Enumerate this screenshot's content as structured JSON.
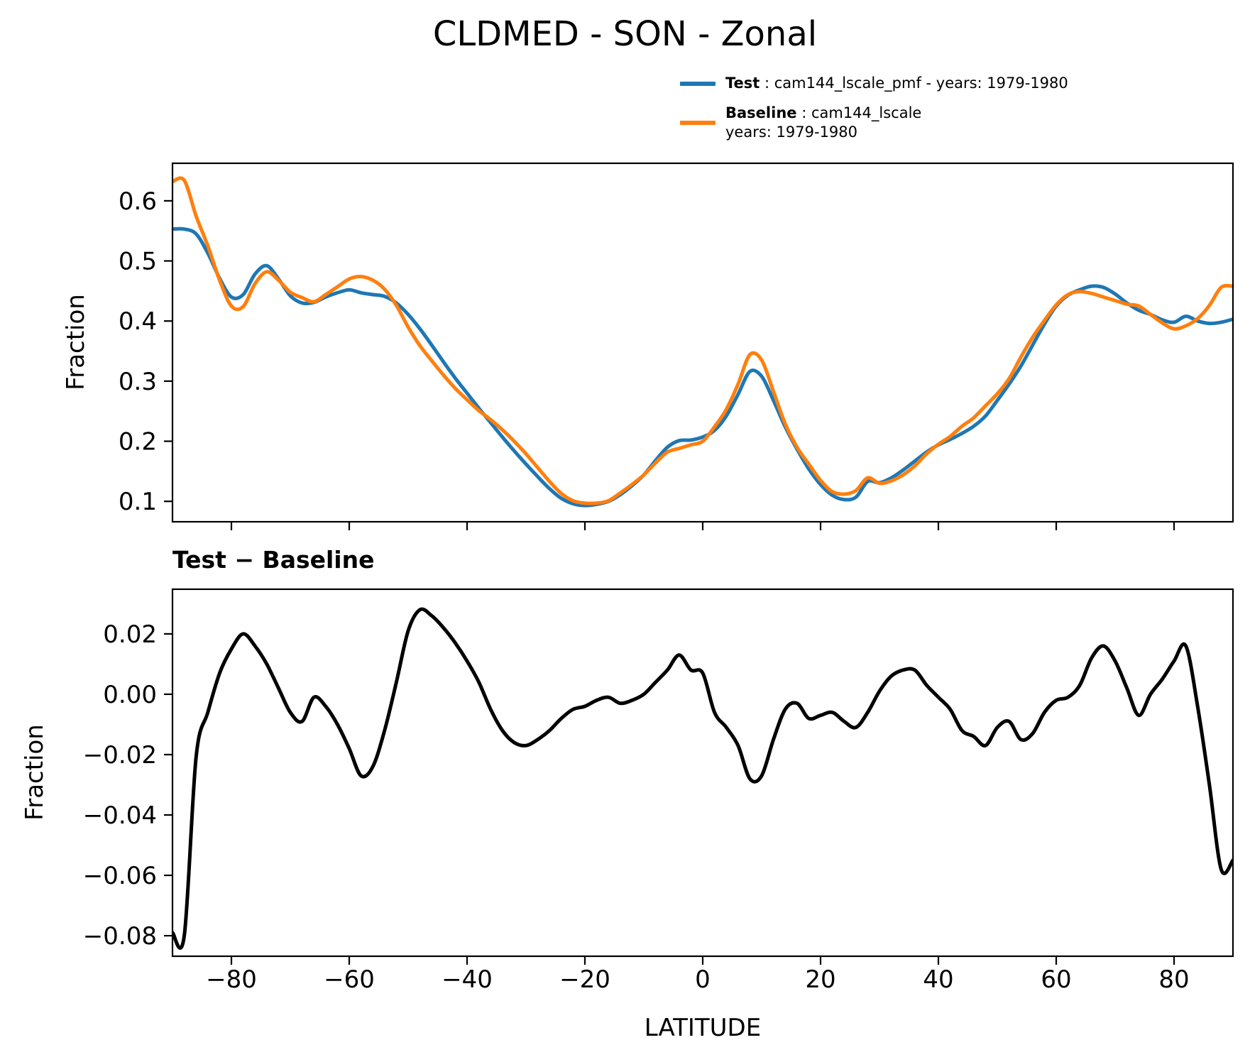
{
  "title": "CLDMED - SON - Zonal",
  "legend": {
    "test_label": "Test",
    "test_rest": " : cam144_lscale_pmf - years: 1979-1980",
    "baseline_label": "Baseline",
    "baseline_rest": " : cam144_lscale",
    "baseline_years": "years: 1979-1980"
  },
  "colors": {
    "test": "#1f77b4",
    "baseline": "#ff7f0e",
    "diff": "#000000",
    "axis": "#000000"
  },
  "chart_data": [
    {
      "type": "line",
      "name": "zonal-mean-panel",
      "title": "",
      "xlabel": "",
      "ylabel": "Fraction",
      "grid": false,
      "legend_position": "above-right",
      "xlim": [
        -90,
        90
      ],
      "ylim": [
        0.066,
        0.6625
      ],
      "xticks": [
        -80,
        -60,
        -40,
        -20,
        0,
        20,
        40,
        60,
        80
      ],
      "xtick_labels": null,
      "yticks": [
        0.1,
        0.2,
        0.3,
        0.4,
        0.5,
        0.6
      ],
      "ytick_labels": [
        "0.1",
        "0.2",
        "0.3",
        "0.4",
        "0.5",
        "0.6"
      ],
      "x": [
        -90,
        -88,
        -86,
        -84,
        -82,
        -80,
        -78,
        -76,
        -74,
        -72,
        -70,
        -68,
        -66,
        -64,
        -62,
        -60,
        -58,
        -56,
        -54,
        -52,
        -50,
        -48,
        -46,
        -44,
        -42,
        -40,
        -38,
        -36,
        -34,
        -32,
        -30,
        -28,
        -26,
        -24,
        -22,
        -20,
        -18,
        -16,
        -14,
        -12,
        -10,
        -8,
        -6,
        -4,
        -2,
        0,
        2,
        4,
        6,
        8,
        10,
        12,
        14,
        16,
        18,
        20,
        22,
        24,
        26,
        28,
        30,
        32,
        34,
        36,
        38,
        40,
        42,
        44,
        46,
        48,
        50,
        52,
        54,
        56,
        58,
        60,
        62,
        64,
        66,
        68,
        70,
        72,
        74,
        76,
        78,
        80,
        82,
        84,
        86,
        88,
        90
      ],
      "series": [
        {
          "name": "Test",
          "color": "test",
          "values": [
            0.553,
            0.553,
            0.545,
            0.513,
            0.471,
            0.44,
            0.444,
            0.478,
            0.492,
            0.47,
            0.442,
            0.43,
            0.431,
            0.44,
            0.447,
            0.452,
            0.447,
            0.444,
            0.441,
            0.43,
            0.411,
            0.387,
            0.36,
            0.332,
            0.305,
            0.28,
            0.255,
            0.231,
            0.207,
            0.184,
            0.162,
            0.141,
            0.121,
            0.105,
            0.096,
            0.093,
            0.095,
            0.1,
            0.111,
            0.126,
            0.144,
            0.168,
            0.19,
            0.201,
            0.202,
            0.207,
            0.218,
            0.242,
            0.278,
            0.316,
            0.308,
            0.268,
            0.224,
            0.187,
            0.154,
            0.128,
            0.11,
            0.103,
            0.107,
            0.133,
            0.131,
            0.139,
            0.152,
            0.167,
            0.182,
            0.194,
            0.203,
            0.213,
            0.225,
            0.242,
            0.268,
            0.295,
            0.325,
            0.36,
            0.395,
            0.425,
            0.443,
            0.452,
            0.458,
            0.456,
            0.445,
            0.43,
            0.418,
            0.411,
            0.402,
            0.398,
            0.408,
            0.4,
            0.396,
            0.398,
            0.403
          ]
        },
        {
          "name": "Baseline",
          "color": "baseline",
          "values": [
            0.632,
            0.634,
            0.575,
            0.525,
            0.468,
            0.425,
            0.424,
            0.462,
            0.482,
            0.468,
            0.448,
            0.439,
            0.432,
            0.444,
            0.457,
            0.47,
            0.474,
            0.468,
            0.453,
            0.426,
            0.39,
            0.359,
            0.334,
            0.31,
            0.288,
            0.269,
            0.251,
            0.236,
            0.219,
            0.2,
            0.179,
            0.156,
            0.133,
            0.113,
            0.101,
            0.097,
            0.097,
            0.101,
            0.114,
            0.128,
            0.144,
            0.164,
            0.182,
            0.188,
            0.194,
            0.2,
            0.224,
            0.253,
            0.295,
            0.344,
            0.335,
            0.283,
            0.229,
            0.19,
            0.162,
            0.135,
            0.116,
            0.112,
            0.118,
            0.139,
            0.13,
            0.134,
            0.144,
            0.159,
            0.179,
            0.195,
            0.208,
            0.225,
            0.239,
            0.259,
            0.279,
            0.304,
            0.34,
            0.373,
            0.401,
            0.427,
            0.444,
            0.449,
            0.446,
            0.44,
            0.434,
            0.428,
            0.425,
            0.411,
            0.397,
            0.387,
            0.392,
            0.404,
            0.426,
            0.456,
            0.458
          ]
        }
      ]
    },
    {
      "type": "line",
      "name": "difference-panel",
      "title": "Test − Baseline",
      "xlabel": "LATITUDE",
      "ylabel": "Fraction",
      "grid": false,
      "xlim": [
        -90,
        90
      ],
      "ylim": [
        -0.0868,
        0.0348
      ],
      "xticks": [
        -80,
        -60,
        -40,
        -20,
        0,
        20,
        40,
        60,
        80
      ],
      "xtick_labels": [
        "−80",
        "−60",
        "−40",
        "−20",
        "0",
        "20",
        "40",
        "60",
        "80"
      ],
      "yticks": [
        0.02,
        0.0,
        -0.02,
        -0.04,
        -0.06,
        -0.08
      ],
      "ytick_labels": [
        "0.02",
        "0.00",
        "−0.02",
        "−0.04",
        "−0.06",
        "−0.08"
      ],
      "x": [
        -90,
        -88,
        -86,
        -84,
        -82,
        -80,
        -78,
        -76,
        -74,
        -72,
        -70,
        -68,
        -66,
        -64,
        -62,
        -60,
        -58,
        -56,
        -54,
        -52,
        -50,
        -48,
        -46,
        -44,
        -42,
        -40,
        -38,
        -36,
        -34,
        -32,
        -30,
        -28,
        -26,
        -24,
        -22,
        -20,
        -18,
        -16,
        -14,
        -12,
        -10,
        -8,
        -6,
        -4,
        -2,
        0,
        2,
        4,
        6,
        8,
        10,
        12,
        14,
        16,
        18,
        20,
        22,
        24,
        26,
        28,
        30,
        32,
        34,
        36,
        38,
        40,
        42,
        44,
        46,
        48,
        50,
        52,
        54,
        56,
        58,
        60,
        62,
        64,
        66,
        68,
        70,
        72,
        74,
        76,
        78,
        80,
        82,
        84,
        86,
        88,
        90
      ],
      "series": [
        {
          "name": "Test − Baseline",
          "color": "diff",
          "values": [
            -0.079,
            -0.08,
            -0.021,
            -0.006,
            0.007,
            0.015,
            0.02,
            0.016,
            0.01,
            0.002,
            -0.006,
            -0.009,
            -0.001,
            -0.004,
            -0.01,
            -0.018,
            -0.027,
            -0.024,
            -0.012,
            0.004,
            0.021,
            0.028,
            0.026,
            0.022,
            0.017,
            0.011,
            0.004,
            -0.005,
            -0.012,
            -0.016,
            -0.017,
            -0.015,
            -0.012,
            -0.008,
            -0.005,
            -0.004,
            -0.002,
            -0.001,
            -0.003,
            -0.002,
            0.0,
            0.004,
            0.008,
            0.013,
            0.008,
            0.007,
            -0.006,
            -0.011,
            -0.017,
            -0.028,
            -0.027,
            -0.015,
            -0.005,
            -0.003,
            -0.008,
            -0.007,
            -0.006,
            -0.009,
            -0.011,
            -0.006,
            0.001,
            0.006,
            0.008,
            0.008,
            0.003,
            -0.001,
            -0.005,
            -0.012,
            -0.014,
            -0.017,
            -0.011,
            -0.009,
            -0.015,
            -0.013,
            -0.006,
            -0.002,
            -0.001,
            0.003,
            0.012,
            0.016,
            0.011,
            0.002,
            -0.007,
            0.0,
            0.005,
            0.011,
            0.016,
            -0.004,
            -0.03,
            -0.058,
            -0.055
          ]
        }
      ]
    }
  ]
}
